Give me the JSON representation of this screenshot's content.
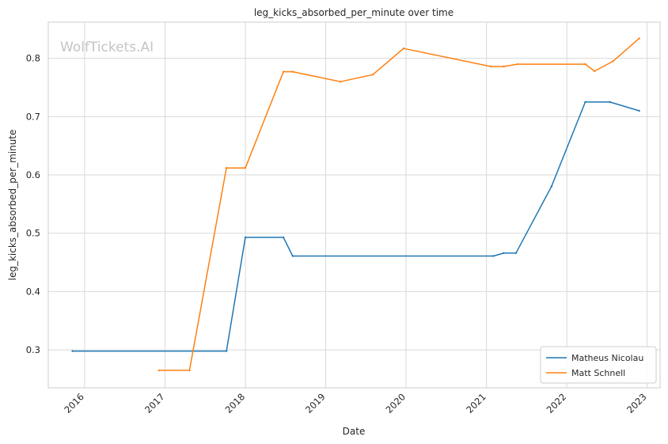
{
  "chart_data": {
    "type": "line",
    "title": "leg_kicks_absorbed_per_minute over time",
    "xlabel": "Date",
    "ylabel": "leg_kicks_absorbed_per_minute",
    "watermark": "WolfTickets.AI",
    "xlim": [
      "2015-07-20",
      "2023-03-01"
    ],
    "ylim": [
      0.235,
      0.862
    ],
    "x_ticks": [
      "2016",
      "2017",
      "2018",
      "2019",
      "2020",
      "2021",
      "2022",
      "2023"
    ],
    "y_ticks": [
      0.3,
      0.4,
      0.5,
      0.6,
      0.7,
      0.8
    ],
    "grid": true,
    "legend_position": "bottom-right",
    "series": [
      {
        "name": "Matheus Nicolau",
        "color": "#1f77b4",
        "points": [
          [
            "2015-11-07",
            0.298
          ],
          [
            "2017-10-07",
            0.298
          ],
          [
            "2018-01-01",
            0.493
          ],
          [
            "2018-06-23",
            0.493
          ],
          [
            "2018-08-04",
            0.461
          ],
          [
            "2021-02-01",
            0.461
          ],
          [
            "2021-03-20",
            0.466
          ],
          [
            "2021-05-15",
            0.466
          ],
          [
            "2021-10-23",
            0.58
          ],
          [
            "2022-03-26",
            0.725
          ],
          [
            "2022-07-16",
            0.725
          ],
          [
            "2022-11-26",
            0.71
          ]
        ]
      },
      {
        "name": "Matt Schnell",
        "color": "#ff7f0e",
        "points": [
          [
            "2016-12-04",
            0.265
          ],
          [
            "2017-04-22",
            0.265
          ],
          [
            "2017-10-07",
            0.612
          ],
          [
            "2018-01-01",
            0.612
          ],
          [
            "2018-06-23",
            0.777
          ],
          [
            "2018-08-04",
            0.777
          ],
          [
            "2019-03-09",
            0.76
          ],
          [
            "2019-08-03",
            0.772
          ],
          [
            "2019-12-21",
            0.817
          ],
          [
            "2021-01-20",
            0.786
          ],
          [
            "2021-03-20",
            0.786
          ],
          [
            "2021-05-22",
            0.79
          ],
          [
            "2022-03-26",
            0.79
          ],
          [
            "2022-05-07",
            0.778
          ],
          [
            "2022-07-30",
            0.795
          ],
          [
            "2022-11-26",
            0.834
          ]
        ]
      }
    ]
  }
}
